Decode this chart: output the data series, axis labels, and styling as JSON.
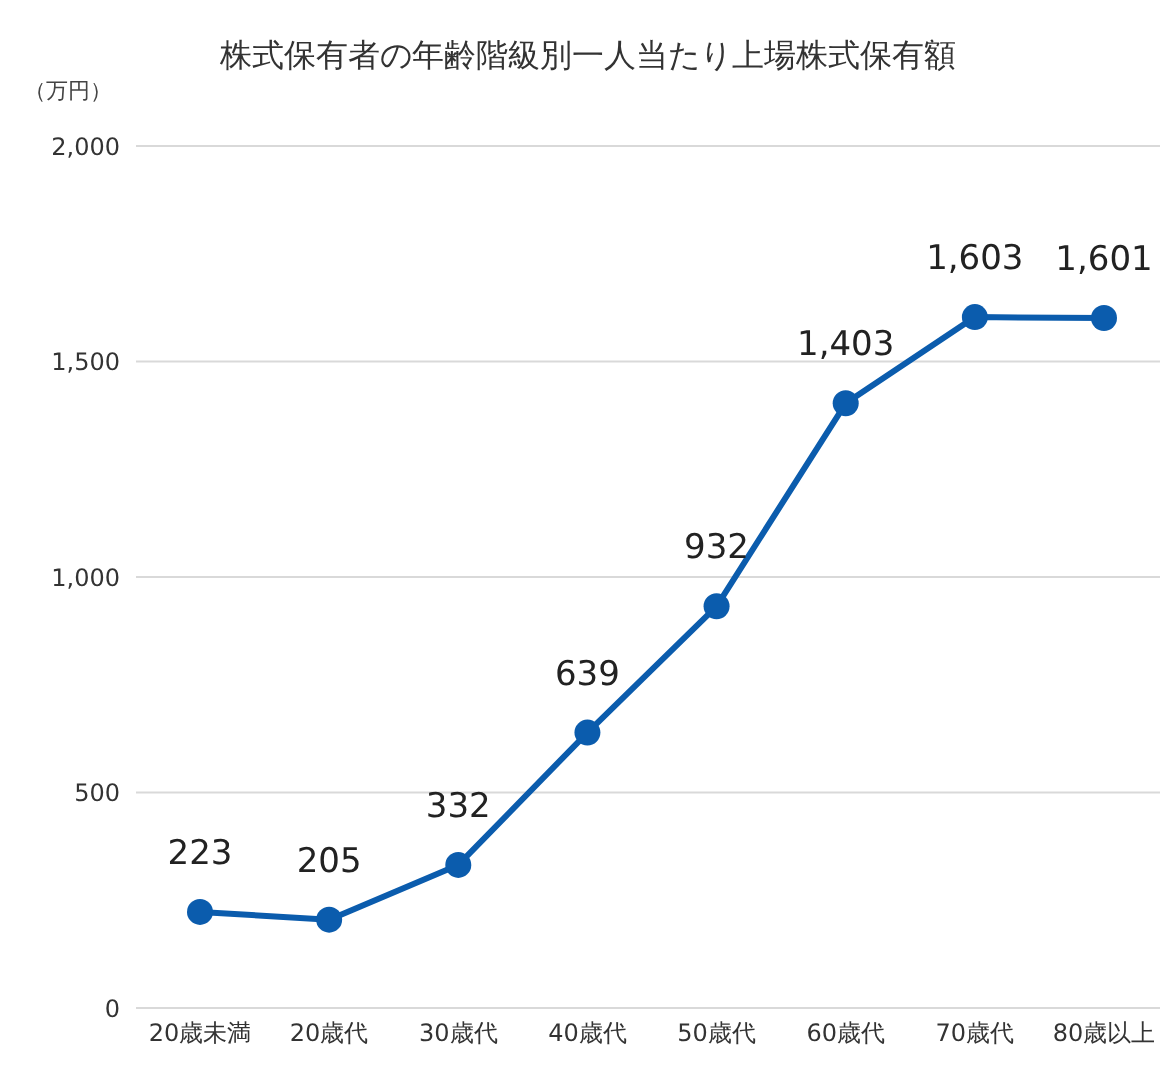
{
  "chart_data": {
    "type": "line",
    "title": "株式保有者の年齢階級別一人当たり上場株式保有額",
    "ylabel": "（万円）",
    "categories": [
      "20歳未満",
      "20歳代",
      "30歳代",
      "40歳代",
      "50歳代",
      "60歳代",
      "70歳代",
      "80歳以上"
    ],
    "series": [
      {
        "color": "#0b5cad",
        "values": [
          223,
          205,
          332,
          639,
          932,
          1403,
          1603,
          1601
        ],
        "value_labels": [
          "223",
          "205",
          "332",
          "639",
          "932",
          "1,403",
          "1,603",
          "1,601"
        ]
      }
    ],
    "ylim": [
      0,
      2000
    ],
    "yticks": [
      0,
      {
        "value": 500,
        "label": "500"
      },
      {
        "value": 1000,
        "label": "1,000"
      },
      {
        "value": 1500,
        "label": "1,500"
      },
      {
        "value": 2000,
        "label": "2,000"
      }
    ],
    "grid": "y",
    "legend": false,
    "marker": "circle",
    "line_style": "solid"
  }
}
